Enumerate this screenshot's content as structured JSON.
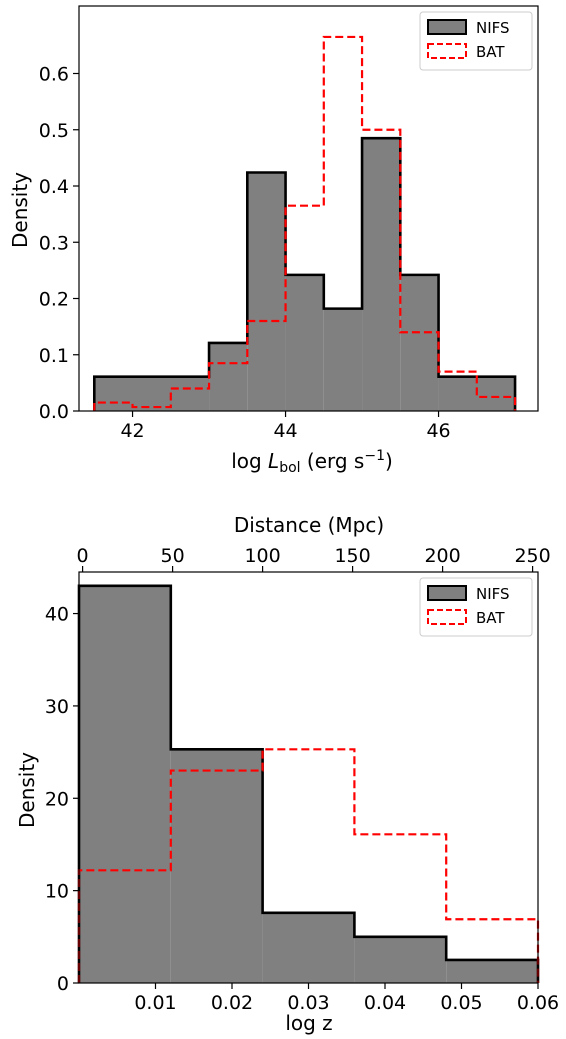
{
  "chart_data": [
    {
      "type": "histogram",
      "xlabel": {
        "main": "log ",
        "italic": "L",
        "sub": "bol",
        "unit_open": " (erg s",
        "sup": "−1",
        "unit_close": ")"
      },
      "ylabel": "Density",
      "xlim": [
        41.3,
        47.3
      ],
      "ylim": [
        0,
        0.72
      ],
      "xticks": [
        42,
        44,
        46
      ],
      "xtick_labels": [
        "42",
        "44",
        "46"
      ],
      "yticks": [
        0.0,
        0.1,
        0.2,
        0.3,
        0.4,
        0.5,
        0.6
      ],
      "ytick_labels": [
        "0.0",
        "0.1",
        "0.2",
        "0.3",
        "0.4",
        "0.5",
        "0.6"
      ],
      "legend": {
        "position": "top-right",
        "entries": [
          "NIFS",
          "BAT"
        ]
      },
      "series": [
        {
          "name": "NIFS",
          "style": "filled",
          "fill": "#808080",
          "edge": "#000000",
          "bins": [
            41.5,
            43.0,
            43.5,
            44.0,
            44.5,
            45.0,
            45.5,
            46.0,
            47.0
          ],
          "values": [
            0.061,
            0.121,
            0.424,
            0.242,
            0.182,
            0.485,
            0.242,
            0.061
          ]
        },
        {
          "name": "BAT",
          "style": "dashed-step",
          "edge": "#ff0000",
          "bins": [
            41.5,
            42.0,
            42.5,
            43.0,
            43.5,
            44.0,
            44.5,
            45.0,
            45.5,
            46.0,
            46.5,
            47.0
          ],
          "values": [
            0.015,
            0.007,
            0.04,
            0.085,
            0.16,
            0.365,
            0.665,
            0.5,
            0.14,
            0.07,
            0.025
          ]
        }
      ]
    },
    {
      "type": "histogram",
      "xlabel": "log z",
      "ylabel": "Density",
      "top_xlabel": "Distance (Mpc)",
      "xlim": [
        0,
        0.06
      ],
      "ylim": [
        0,
        44.5
      ],
      "xticks": [
        0.01,
        0.02,
        0.03,
        0.04,
        0.05,
        0.06
      ],
      "xtick_labels": [
        "0.01",
        "0.02",
        "0.03",
        "0.04",
        "0.05",
        "0.06"
      ],
      "top_xticks": [
        0,
        50,
        100,
        150,
        200,
        250
      ],
      "top_xtick_labels": [
        "0",
        "50",
        "100",
        "150",
        "200",
        "250"
      ],
      "top_xlim": [
        -2,
        253
      ],
      "yticks": [
        0,
        10,
        20,
        30,
        40
      ],
      "ytick_labels": [
        "0",
        "10",
        "20",
        "30",
        "40"
      ],
      "legend": {
        "position": "top-right",
        "entries": [
          "NIFS",
          "BAT"
        ]
      },
      "series": [
        {
          "name": "NIFS",
          "style": "filled",
          "fill": "#808080",
          "edge": "#000000",
          "bins": [
            0,
            0.012,
            0.024,
            0.036,
            0.048,
            0.06
          ],
          "values": [
            43,
            25.3,
            7.6,
            5.0,
            2.5
          ]
        },
        {
          "name": "BAT",
          "style": "dashed-step",
          "edge": "#ff0000",
          "bins": [
            0,
            0.012,
            0.024,
            0.036,
            0.048,
            0.06
          ],
          "values": [
            12.2,
            23,
            25.3,
            16.1,
            6.9
          ]
        }
      ]
    }
  ]
}
